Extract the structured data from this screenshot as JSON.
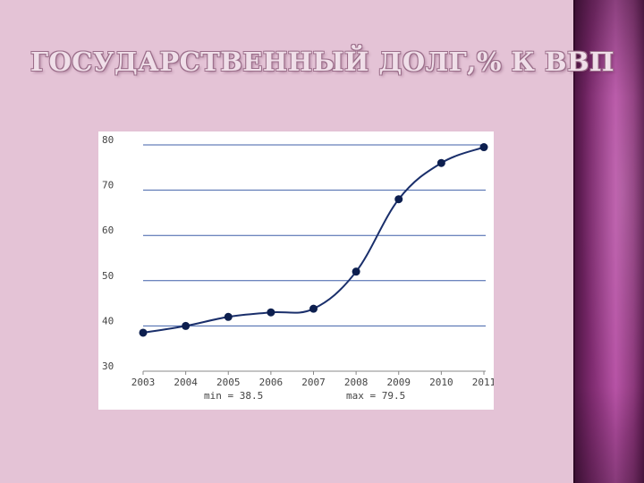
{
  "slide": {
    "title": "ГОСУДАРСТВЕННЫЙ ДОЛГ,% К ВВП"
  },
  "colors": {
    "background": "#e4c3d6",
    "line": "#1a2f6b",
    "grid": "#3f5fa8",
    "marker": "#0d1f4f",
    "text": "#444444"
  },
  "chart_data": {
    "type": "line",
    "title": "",
    "xlabel": "",
    "ylabel": "",
    "x": [
      "2003",
      "2004",
      "2005",
      "2006",
      "2007",
      "2008",
      "2009",
      "2010",
      "2011"
    ],
    "series": [
      {
        "values": [
          38.5,
          40,
          42,
          43,
          43.8,
          52,
          68,
          76,
          79.5
        ]
      }
    ],
    "ylim": [
      30,
      80
    ],
    "yticks": [
      30,
      40,
      50,
      60,
      70,
      80
    ],
    "grid": true,
    "smooth": true,
    "stats": {
      "min_label": "min = 38.5",
      "max_label": "max = 79.5"
    }
  }
}
